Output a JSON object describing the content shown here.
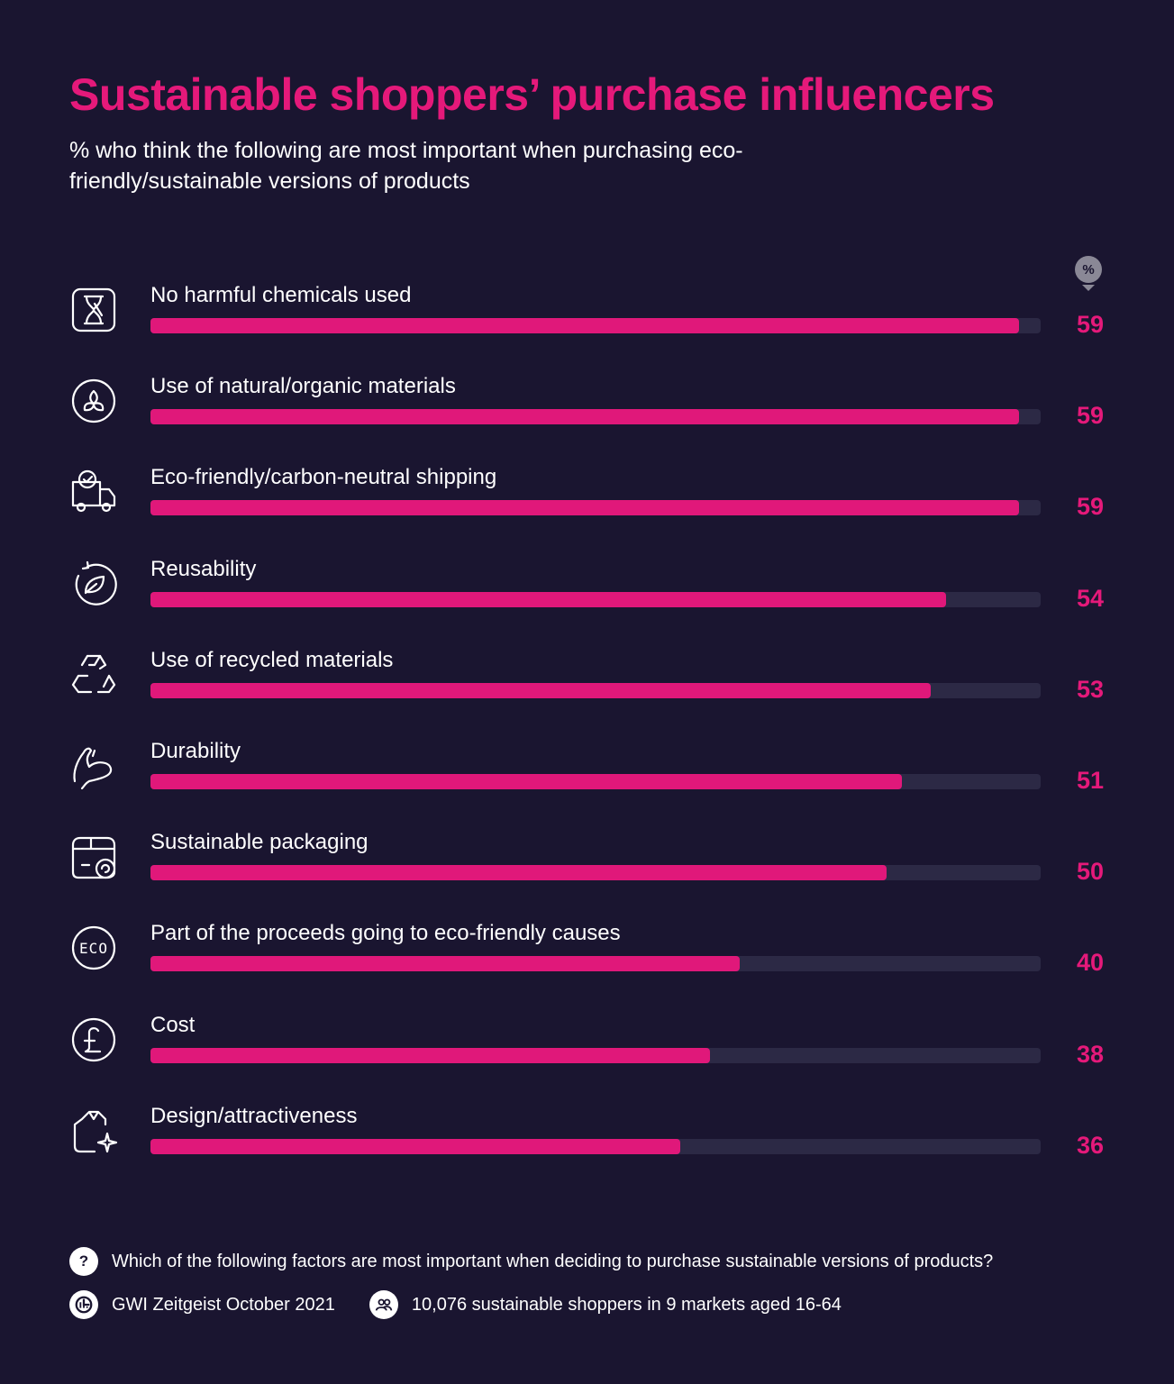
{
  "title": "Sustainable shoppers’ purchase influencers",
  "subtitle": "% who think the following are most important when purchasing eco-friendly/sustainable versions of products",
  "unit_badge": "%",
  "colors": {
    "background": "#1a1530",
    "accent": "#e5197a",
    "track": "#2c2945"
  },
  "chart_data": {
    "type": "bar",
    "orientation": "horizontal",
    "categories": [
      "No harmful chemicals used",
      "Use of natural/organic materials",
      "Eco-friendly/carbon-neutral shipping",
      "Reusability",
      "Use of recycled materials",
      "Durability",
      "Sustainable packaging",
      "Part of the proceeds going to eco-friendly causes",
      "Cost",
      "Design/attractiveness"
    ],
    "values": [
      59,
      59,
      59,
      54,
      53,
      51,
      50,
      40,
      38,
      36
    ],
    "xlim": [
      0,
      60
    ],
    "icons": [
      "hourglass-icon",
      "plant-icon",
      "delivery-truck-icon",
      "reuse-leaf-icon",
      "recycle-icon",
      "flexed-arm-icon",
      "packaging-icon",
      "eco-badge-icon",
      "pound-icon",
      "sparkle-shirt-icon"
    ]
  },
  "footer": {
    "question_icon": "?",
    "question": "Which of the following factors are most important when deciding to purchase sustainable versions of products?",
    "source": "GWI Zeitgeist October 2021",
    "sample": "10,076 sustainable shoppers in 9 markets aged 16-64"
  }
}
